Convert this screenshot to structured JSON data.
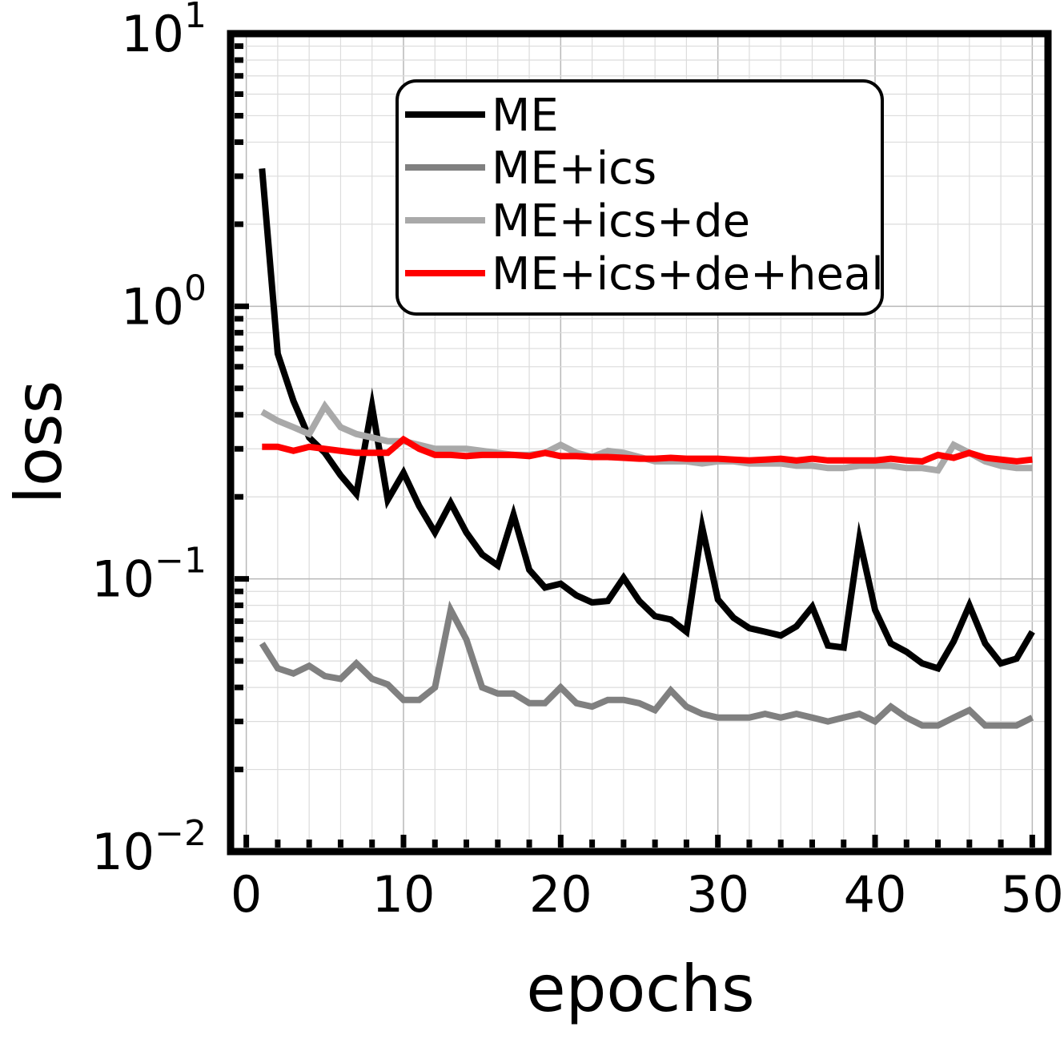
{
  "chart_data": {
    "type": "line",
    "xlabel": "epochs",
    "ylabel": "loss",
    "yscale": "log",
    "xlim": [
      -1,
      51
    ],
    "ylim": [
      0.01,
      10
    ],
    "x_ticks": [
      0,
      10,
      20,
      30,
      40,
      50
    ],
    "x_tick_labels": [
      "0",
      "10",
      "20",
      "30",
      "40",
      "50"
    ],
    "y_ticks": [
      {
        "value": 10,
        "base": "10",
        "exp": "1"
      },
      {
        "value": 1,
        "base": "10",
        "exp": "0"
      },
      {
        "value": 0.1,
        "base": "10",
        "exp": "−1"
      },
      {
        "value": 0.01,
        "base": "10",
        "exp": "−2"
      }
    ],
    "grid": true,
    "legend_position": "top-center",
    "x": [
      1,
      2,
      3,
      4,
      5,
      6,
      7,
      8,
      9,
      10,
      11,
      12,
      13,
      14,
      15,
      16,
      17,
      18,
      19,
      20,
      21,
      22,
      23,
      24,
      25,
      26,
      27,
      28,
      29,
      30,
      31,
      32,
      33,
      34,
      35,
      36,
      37,
      38,
      39,
      40,
      41,
      42,
      43,
      44,
      45,
      46,
      47,
      48,
      49,
      50
    ],
    "series": [
      {
        "name": "ME",
        "color": "#000000",
        "values": [
          3.2,
          0.67,
          0.45,
          0.33,
          0.29,
          0.24,
          0.205,
          0.43,
          0.195,
          0.245,
          0.185,
          0.148,
          0.19,
          0.148,
          0.123,
          0.112,
          0.172,
          0.108,
          0.093,
          0.096,
          0.087,
          0.082,
          0.083,
          0.101,
          0.083,
          0.073,
          0.071,
          0.064,
          0.155,
          0.084,
          0.072,
          0.066,
          0.064,
          0.062,
          0.067,
          0.079,
          0.057,
          0.056,
          0.14,
          0.077,
          0.058,
          0.054,
          0.049,
          0.047,
          0.059,
          0.08,
          0.058,
          0.049,
          0.051,
          0.064
        ]
      },
      {
        "name": "ME+ics",
        "color": "#808080",
        "values": [
          0.058,
          0.047,
          0.045,
          0.048,
          0.044,
          0.043,
          0.049,
          0.043,
          0.041,
          0.036,
          0.036,
          0.04,
          0.077,
          0.06,
          0.04,
          0.038,
          0.038,
          0.035,
          0.035,
          0.04,
          0.035,
          0.034,
          0.036,
          0.036,
          0.035,
          0.033,
          0.039,
          0.034,
          0.032,
          0.031,
          0.031,
          0.031,
          0.032,
          0.031,
          0.032,
          0.031,
          0.03,
          0.031,
          0.032,
          0.03,
          0.034,
          0.031,
          0.029,
          0.029,
          0.031,
          0.033,
          0.029,
          0.029,
          0.029,
          0.031
        ]
      },
      {
        "name": "ME+ics+de",
        "color": "#a9a9a9",
        "values": [
          0.41,
          0.38,
          0.36,
          0.34,
          0.43,
          0.36,
          0.34,
          0.33,
          0.32,
          0.32,
          0.31,
          0.3,
          0.3,
          0.3,
          0.295,
          0.29,
          0.285,
          0.285,
          0.29,
          0.31,
          0.29,
          0.28,
          0.295,
          0.29,
          0.28,
          0.27,
          0.27,
          0.27,
          0.265,
          0.27,
          0.27,
          0.265,
          0.265,
          0.265,
          0.26,
          0.26,
          0.255,
          0.255,
          0.26,
          0.26,
          0.26,
          0.255,
          0.255,
          0.25,
          0.31,
          0.29,
          0.27,
          0.26,
          0.255,
          0.255
        ]
      },
      {
        "name": "ME+ics+de+heal",
        "color": "#ff0000",
        "values": [
          0.305,
          0.305,
          0.295,
          0.305,
          0.3,
          0.295,
          0.29,
          0.29,
          0.29,
          0.325,
          0.3,
          0.285,
          0.285,
          0.282,
          0.285,
          0.285,
          0.285,
          0.282,
          0.29,
          0.282,
          0.282,
          0.28,
          0.28,
          0.278,
          0.276,
          0.276,
          0.278,
          0.276,
          0.276,
          0.276,
          0.274,
          0.272,
          0.274,
          0.276,
          0.272,
          0.276,
          0.272,
          0.272,
          0.272,
          0.272,
          0.276,
          0.272,
          0.27,
          0.285,
          0.278,
          0.29,
          0.278,
          0.274,
          0.27,
          0.274
        ]
      }
    ]
  }
}
